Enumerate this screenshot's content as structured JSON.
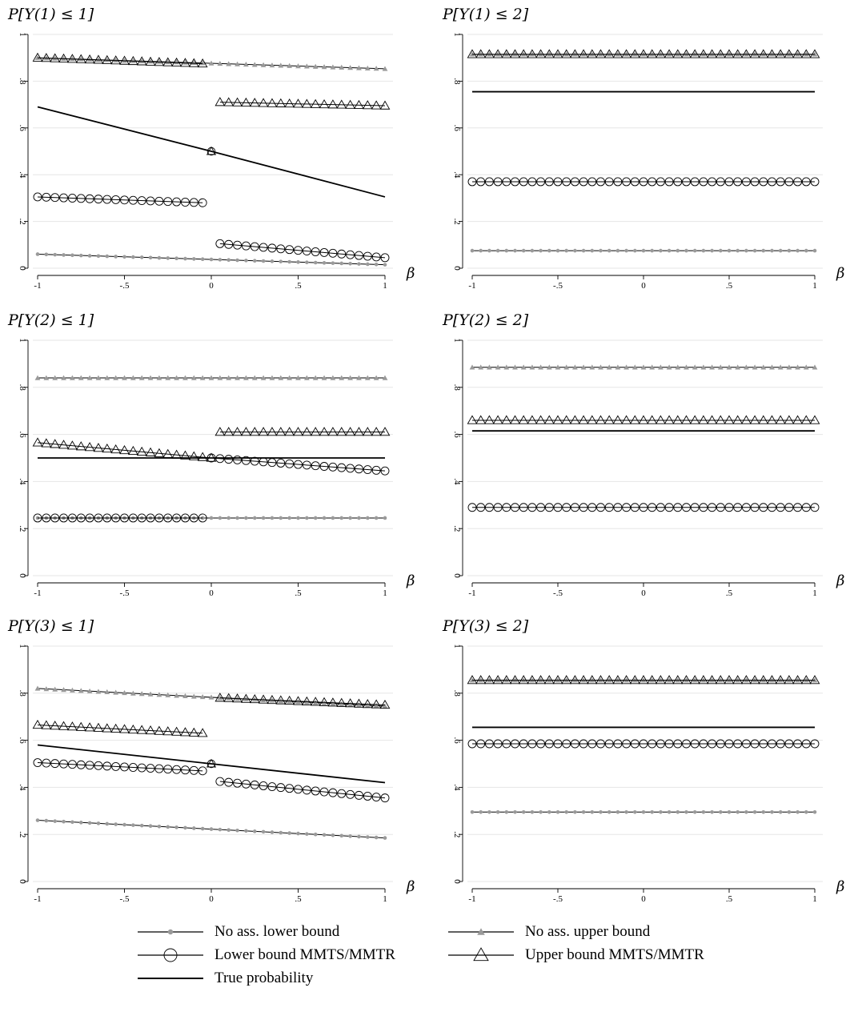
{
  "chart_data": [
    {
      "type": "line",
      "title": "P[Y(1) ≤ 1]",
      "xlabel": "β",
      "xlim": [
        -1,
        1
      ],
      "ylim": [
        0,
        1
      ],
      "xticks": [
        -1,
        -0.5,
        0,
        0.5,
        1
      ],
      "xtick_labels": [
        "-1",
        "-.5",
        "0",
        ".5",
        "1"
      ],
      "yticks": [
        0,
        0.2,
        0.4,
        0.6,
        0.8,
        1
      ],
      "ytick_labels": [
        "0",
        ".2",
        ".4",
        ".6",
        ".8",
        "1"
      ],
      "grid": true,
      "series": [
        {
          "name": "No ass. lower bound",
          "style": "gray-dot",
          "segments": [
            [
              [
                -1,
                0.06
              ],
              [
                1,
                0.015
              ]
            ]
          ]
        },
        {
          "name": "No ass. upper bound",
          "style": "gray-triangle",
          "segments": [
            [
              [
                -1,
                0.9
              ],
              [
                1,
                0.853
              ]
            ]
          ]
        },
        {
          "name": "Lower bound MMTS/MMTR",
          "style": "circle",
          "segments": [
            [
              [
                -1,
                0.305
              ],
              [
                -0.05,
                0.28
              ]
            ],
            [
              [
                0.05,
                0.105
              ],
              [
                1,
                0.045
              ]
            ]
          ]
        },
        {
          "name": "Upper bound MMTS/MMTR",
          "style": "triangle",
          "segments": [
            [
              [
                -1,
                0.9
              ],
              [
                -0.05,
                0.875
              ]
            ],
            [
              [
                0.05,
                0.71
              ],
              [
                1,
                0.695
              ]
            ]
          ]
        },
        {
          "name": "True probability",
          "style": "solid",
          "segments": [
            [
              [
                -1,
                0.69
              ],
              [
                0,
                0.5
              ],
              [
                1,
                0.305
              ]
            ]
          ]
        }
      ],
      "markers": [
        {
          "x": 0,
          "y": 0.5,
          "shapes": [
            "circle",
            "triangle"
          ]
        }
      ]
    },
    {
      "type": "line",
      "title": "P[Y(1) ≤ 2]",
      "xlabel": "β",
      "xlim": [
        -1,
        1
      ],
      "ylim": [
        0,
        1
      ],
      "xticks": [
        -1,
        -0.5,
        0,
        0.5,
        1
      ],
      "xtick_labels": [
        "-1",
        "-.5",
        "0",
        ".5",
        "1"
      ],
      "yticks": [
        0,
        0.2,
        0.4,
        0.6,
        0.8,
        1
      ],
      "ytick_labels": [
        "0",
        ".2",
        ".4",
        ".6",
        ".8",
        "1"
      ],
      "grid": true,
      "series": [
        {
          "name": "No ass. lower bound",
          "style": "gray-dot",
          "segments": [
            [
              [
                -1,
                0.075
              ],
              [
                1,
                0.075
              ]
            ]
          ]
        },
        {
          "name": "No ass. upper bound",
          "style": "gray-triangle",
          "segments": [
            [
              [
                -1,
                0.915
              ],
              [
                1,
                0.915
              ]
            ]
          ]
        },
        {
          "name": "Lower bound MMTS/MMTR",
          "style": "circle",
          "segments": [
            [
              [
                -1,
                0.37
              ],
              [
                1,
                0.37
              ]
            ]
          ]
        },
        {
          "name": "Upper bound MMTS/MMTR",
          "style": "triangle",
          "segments": [
            [
              [
                -1,
                0.915
              ],
              [
                1,
                0.915
              ]
            ]
          ]
        },
        {
          "name": "True probability",
          "style": "solid",
          "segments": [
            [
              [
                -1,
                0.755
              ],
              [
                1,
                0.755
              ]
            ]
          ]
        }
      ],
      "markers": []
    },
    {
      "type": "line",
      "title": "P[Y(2) ≤ 1]",
      "xlabel": "β",
      "xlim": [
        -1,
        1
      ],
      "ylim": [
        0,
        1
      ],
      "xticks": [
        -1,
        -0.5,
        0,
        0.5,
        1
      ],
      "xtick_labels": [
        "-1",
        "-.5",
        "0",
        ".5",
        "1"
      ],
      "yticks": [
        0,
        0.2,
        0.4,
        0.6,
        0.8,
        1
      ],
      "ytick_labels": [
        "0",
        ".2",
        ".4",
        ".6",
        ".8",
        "1"
      ],
      "grid": true,
      "series": [
        {
          "name": "No ass. lower bound",
          "style": "gray-dot",
          "segments": [
            [
              [
                -1,
                0.245
              ],
              [
                1,
                0.245
              ]
            ]
          ]
        },
        {
          "name": "No ass. upper bound",
          "style": "gray-triangle",
          "segments": [
            [
              [
                -1,
                0.84
              ],
              [
                1,
                0.84
              ]
            ]
          ]
        },
        {
          "name": "Lower bound MMTS/MMTR",
          "style": "circle",
          "segments": [
            [
              [
                -1,
                0.245
              ],
              [
                -0.05,
                0.245
              ]
            ],
            [
              [
                0,
                0.5
              ],
              [
                1,
                0.445
              ]
            ]
          ]
        },
        {
          "name": "Upper bound MMTS/MMTR",
          "style": "triangle",
          "segments": [
            [
              [
                -1,
                0.565
              ],
              [
                0,
                0.5
              ]
            ],
            [
              [
                0.05,
                0.61
              ],
              [
                1,
                0.61
              ]
            ]
          ]
        },
        {
          "name": "True probability",
          "style": "solid",
          "segments": [
            [
              [
                -1,
                0.5
              ],
              [
                1,
                0.5
              ]
            ]
          ]
        }
      ],
      "markers": []
    },
    {
      "type": "line",
      "title": "P[Y(2) ≤ 2]",
      "xlabel": "β",
      "xlim": [
        -1,
        1
      ],
      "ylim": [
        0,
        1
      ],
      "xticks": [
        -1,
        -0.5,
        0,
        0.5,
        1
      ],
      "xtick_labels": [
        "-1",
        "-.5",
        "0",
        ".5",
        "1"
      ],
      "yticks": [
        0,
        0.2,
        0.4,
        0.6,
        0.8,
        1
      ],
      "ytick_labels": [
        "0",
        ".2",
        ".4",
        ".6",
        ".8",
        "1"
      ],
      "grid": true,
      "series": [
        {
          "name": "No ass. lower bound",
          "style": "gray-dot",
          "segments": []
        },
        {
          "name": "No ass. upper bound",
          "style": "gray-triangle",
          "segments": [
            [
              [
                -1,
                0.885
              ],
              [
                1,
                0.885
              ]
            ]
          ]
        },
        {
          "name": "Lower bound MMTS/MMTR",
          "style": "circle",
          "segments": [
            [
              [
                -1,
                0.29
              ],
              [
                1,
                0.29
              ]
            ]
          ]
        },
        {
          "name": "Upper bound MMTS/MMTR",
          "style": "triangle",
          "segments": [
            [
              [
                -1,
                0.66
              ],
              [
                1,
                0.66
              ]
            ]
          ]
        },
        {
          "name": "True probability",
          "style": "solid",
          "segments": [
            [
              [
                -1,
                0.615
              ],
              [
                1,
                0.615
              ]
            ]
          ]
        }
      ],
      "markers": []
    },
    {
      "type": "line",
      "title": "P[Y(3) ≤ 1]",
      "xlabel": "β",
      "xlim": [
        -1,
        1
      ],
      "ylim": [
        0,
        1
      ],
      "xticks": [
        -1,
        -0.5,
        0,
        0.5,
        1
      ],
      "xtick_labels": [
        "-1",
        "-.5",
        "0",
        ".5",
        "1"
      ],
      "yticks": [
        0,
        0.2,
        0.4,
        0.6,
        0.8,
        1
      ],
      "ytick_labels": [
        "0",
        ".2",
        ".4",
        ".6",
        ".8",
        "1"
      ],
      "grid": true,
      "series": [
        {
          "name": "No ass. lower bound",
          "style": "gray-dot",
          "segments": [
            [
              [
                -1,
                0.26
              ],
              [
                1,
                0.185
              ]
            ]
          ]
        },
        {
          "name": "No ass. upper bound",
          "style": "gray-triangle",
          "segments": [
            [
              [
                -1,
                0.82
              ],
              [
                1,
                0.745
              ]
            ]
          ]
        },
        {
          "name": "Lower bound MMTS/MMTR",
          "style": "circle",
          "segments": [
            [
              [
                -1,
                0.505
              ],
              [
                -0.05,
                0.47
              ]
            ],
            [
              [
                0.05,
                0.425
              ],
              [
                1,
                0.355
              ]
            ]
          ]
        },
        {
          "name": "Upper bound MMTS/MMTR",
          "style": "triangle",
          "segments": [
            [
              [
                -1,
                0.665
              ],
              [
                -0.05,
                0.63
              ]
            ],
            [
              [
                0.05,
                0.78
              ],
              [
                1,
                0.75
              ]
            ]
          ]
        },
        {
          "name": "True probability",
          "style": "solid",
          "segments": [
            [
              [
                -1,
                0.58
              ],
              [
                0,
                0.5
              ],
              [
                1,
                0.42
              ]
            ]
          ]
        }
      ],
      "markers": [
        {
          "x": 0,
          "y": 0.5,
          "shapes": [
            "circle",
            "triangle"
          ]
        }
      ]
    },
    {
      "type": "line",
      "title": "P[Y(3) ≤ 2]",
      "xlabel": "β",
      "xlim": [
        -1,
        1
      ],
      "ylim": [
        0,
        1
      ],
      "xticks": [
        -1,
        -0.5,
        0,
        0.5,
        1
      ],
      "xtick_labels": [
        "-1",
        "-.5",
        "0",
        ".5",
        "1"
      ],
      "yticks": [
        0,
        0.2,
        0.4,
        0.6,
        0.8,
        1
      ],
      "ytick_labels": [
        "0",
        ".2",
        ".4",
        ".6",
        ".8",
        "1"
      ],
      "grid": true,
      "series": [
        {
          "name": "No ass. lower bound",
          "style": "gray-dot",
          "segments": [
            [
              [
                -1,
                0.295
              ],
              [
                1,
                0.295
              ]
            ]
          ]
        },
        {
          "name": "No ass. upper bound",
          "style": "gray-triangle",
          "segments": [
            [
              [
                -1,
                0.855
              ],
              [
                1,
                0.855
              ]
            ]
          ]
        },
        {
          "name": "Lower bound MMTS/MMTR",
          "style": "circle",
          "segments": [
            [
              [
                -1,
                0.585
              ],
              [
                1,
                0.585
              ]
            ]
          ]
        },
        {
          "name": "Upper bound MMTS/MMTR",
          "style": "triangle",
          "segments": [
            [
              [
                -1,
                0.855
              ],
              [
                1,
                0.855
              ]
            ]
          ]
        },
        {
          "name": "True probability",
          "style": "solid",
          "segments": [
            [
              [
                -1,
                0.655
              ],
              [
                1,
                0.655
              ]
            ]
          ]
        }
      ],
      "markers": []
    }
  ],
  "legend": {
    "items": [
      {
        "label": "No ass. lower bound",
        "style": "gray-dot"
      },
      {
        "label": "No ass. upper bound",
        "style": "gray-triangle"
      },
      {
        "label": "Lower bound MMTS/MMTR",
        "style": "circle"
      },
      {
        "label": "Upper bound MMTS/MMTR",
        "style": "triangle"
      },
      {
        "label": "True probability",
        "style": "solid"
      }
    ]
  },
  "colors": {
    "line": "#000000",
    "gray_marker": "#9a9a9a",
    "grid": "#e6e6e6",
    "axis": "#000000"
  }
}
